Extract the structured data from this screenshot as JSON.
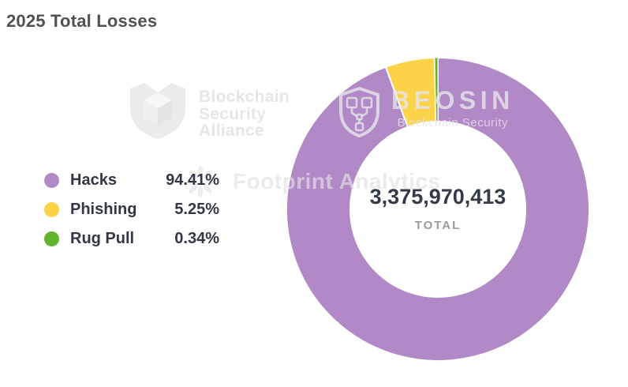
{
  "title": "2025 Total Losses",
  "chart_data": {
    "type": "donut",
    "categories": [
      "Hacks",
      "Phishing",
      "Rug Pull"
    ],
    "values": [
      94.41,
      5.25,
      0.34
    ],
    "percent_labels": [
      "94.41%",
      "5.25%",
      "0.34%"
    ],
    "colors": [
      "#b289c7",
      "#fcd348",
      "#63b32c"
    ],
    "start_angle": "top",
    "direction": "clockwise",
    "center_total": "3,375,970,413",
    "center_label": "TOTAL",
    "legend_position": "left"
  },
  "legend": {
    "items": [
      {
        "label": "Hacks",
        "pct": "94.41%",
        "color": "#b289c7"
      },
      {
        "label": "Phishing",
        "pct": "5.25%",
        "color": "#fcd348"
      },
      {
        "label": "Rug Pull",
        "pct": "0.34%",
        "color": "#63b32c"
      }
    ]
  },
  "watermarks": {
    "bsa": {
      "line1": "Blockchain",
      "line2": "Security",
      "line3": "Alliance"
    },
    "beosin": {
      "name": "BEOSIN",
      "subtitle": "Blockchain Security"
    },
    "footprint": {
      "text": "Footprint Analytics"
    }
  }
}
